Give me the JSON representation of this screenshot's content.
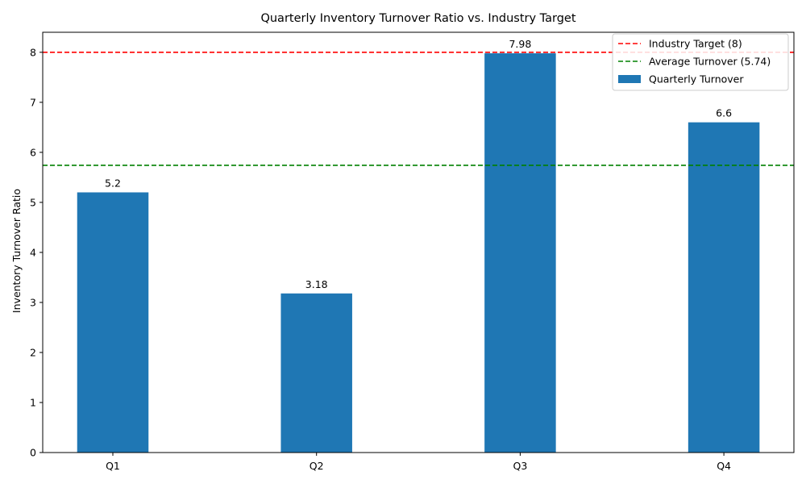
{
  "chart_data": {
    "type": "bar",
    "title": "Quarterly Inventory Turnover Ratio vs. Industry Target",
    "xlabel": "",
    "ylabel": "Inventory Turnover Ratio",
    "categories": [
      "Q1",
      "Q2",
      "Q3",
      "Q4"
    ],
    "series": [
      {
        "name": "Quarterly Turnover",
        "values": [
          5.2,
          3.18,
          7.98,
          6.6
        ],
        "color": "#1f77b4"
      }
    ],
    "data_labels": [
      "5.2",
      "3.18",
      "7.98",
      "6.6"
    ],
    "reference_lines": [
      {
        "name": "Industry Target (8)",
        "value": 8,
        "color": "#ff0000",
        "style": "dashed"
      },
      {
        "name": "Average Turnover (5.74)",
        "value": 5.74,
        "color": "#008000",
        "style": "dashed"
      }
    ],
    "ylim": [
      0,
      8.4
    ],
    "yticks": [
      "0",
      "1",
      "2",
      "3",
      "4",
      "5",
      "6",
      "7",
      "8"
    ],
    "grid": false,
    "legend_position": "top-right",
    "legend": [
      "Industry Target (8)",
      "Average Turnover (5.74)",
      "Quarterly Turnover"
    ]
  }
}
